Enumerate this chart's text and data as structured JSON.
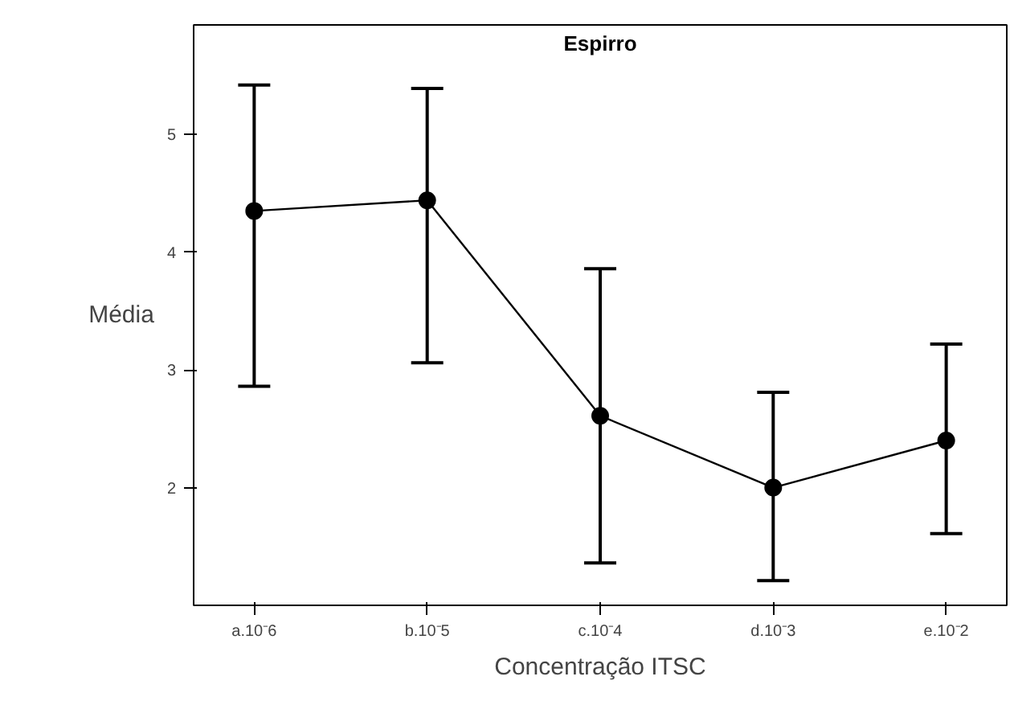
{
  "chart_data": {
    "type": "line",
    "title": "Espirro",
    "xlabel": "Concentração ITSC",
    "ylabel": "Média",
    "categories": [
      "a.10⁻6",
      "b.10⁻5",
      "c.10⁻4",
      "d.10⁻3",
      "e.10⁻2"
    ],
    "values": [
      4.35,
      4.44,
      2.61,
      2.0,
      2.4
    ],
    "errors": [
      [
        2.86,
        5.42
      ],
      [
        3.06,
        5.39
      ],
      [
        1.36,
        3.86
      ],
      [
        1.21,
        2.81
      ],
      [
        1.61,
        3.22
      ]
    ],
    "color": "#000000",
    "marker": "circle",
    "line_style": "solid",
    "grid": false,
    "ylim": [
      1.0,
      5.93
    ],
    "yticks": [
      2,
      3,
      4,
      5
    ]
  }
}
